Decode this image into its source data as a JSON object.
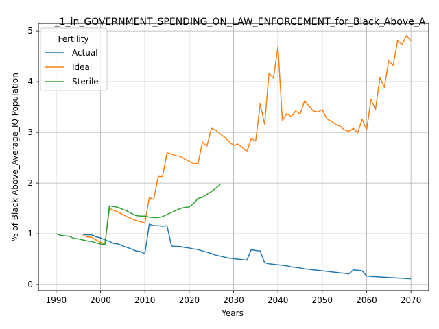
{
  "chart_data": {
    "type": "line",
    "title": "_1_in_GOVERNMENT_SPENDING_ON_LAW_ENFORCEMENT_for_Black_Above_A",
    "xlabel": "Years",
    "ylabel": "% of Black Above_Average_IQ Population",
    "xlim": [
      1986,
      2074
    ],
    "ylim": [
      -0.12,
      5.15
    ],
    "xticks": [
      1990,
      2000,
      2010,
      2020,
      2030,
      2040,
      2050,
      2060,
      2070
    ],
    "yticks": [
      0,
      1,
      2,
      3,
      4,
      5
    ],
    "grid": true,
    "legend": {
      "title": "Fertility",
      "placement": "upper-left"
    },
    "series": [
      {
        "name": "Actual",
        "color": "#1f77b4",
        "x": [
          1996,
          1997,
          1998,
          1999,
          2000,
          2001,
          2002,
          2003,
          2004,
          2005,
          2006,
          2007,
          2008,
          2009,
          2010,
          2011,
          2012,
          2013,
          2014,
          2015,
          2016,
          2017,
          2018,
          2019,
          2020,
          2021,
          2022,
          2023,
          2024,
          2025,
          2026,
          2027,
          2028,
          2029,
          2030,
          2031,
          2032,
          2033,
          2034,
          2035,
          2036,
          2037,
          2038,
          2039,
          2040,
          2041,
          2042,
          2043,
          2044,
          2045,
          2046,
          2047,
          2048,
          2049,
          2050,
          2051,
          2052,
          2053,
          2054,
          2055,
          2056,
          2057,
          2058,
          2059,
          2060,
          2061,
          2062,
          2063,
          2064,
          2065,
          2066,
          2067,
          2068,
          2069,
          2070
        ],
        "values": [
          0.99,
          0.98,
          0.98,
          0.94,
          0.92,
          0.88,
          0.85,
          0.81,
          0.8,
          0.76,
          0.73,
          0.7,
          0.66,
          0.65,
          0.61,
          1.19,
          1.16,
          1.16,
          1.15,
          1.16,
          0.76,
          0.75,
          0.75,
          0.73,
          0.72,
          0.7,
          0.69,
          0.66,
          0.64,
          0.61,
          0.58,
          0.56,
          0.54,
          0.52,
          0.51,
          0.5,
          0.49,
          0.48,
          0.69,
          0.67,
          0.66,
          0.43,
          0.41,
          0.4,
          0.39,
          0.38,
          0.37,
          0.35,
          0.34,
          0.33,
          0.31,
          0.3,
          0.29,
          0.28,
          0.27,
          0.26,
          0.25,
          0.24,
          0.23,
          0.22,
          0.21,
          0.29,
          0.28,
          0.27,
          0.17,
          0.16,
          0.155,
          0.15,
          0.145,
          0.14,
          0.135,
          0.13,
          0.125,
          0.12,
          0.115
        ]
      },
      {
        "name": "Ideal",
        "color": "#ff7f0e",
        "x": [
          1996,
          1997,
          1998,
          1999,
          2000,
          2001,
          2002,
          2003,
          2004,
          2005,
          2006,
          2007,
          2008,
          2009,
          2010,
          2011,
          2012,
          2013,
          2014,
          2015,
          2016,
          2017,
          2018,
          2019,
          2020,
          2021,
          2022,
          2023,
          2024,
          2025,
          2026,
          2027,
          2028,
          2029,
          2030,
          2031,
          2032,
          2033,
          2034,
          2035,
          2036,
          2037,
          2038,
          2039,
          2040,
          2041,
          2042,
          2043,
          2044,
          2045,
          2046,
          2047,
          2048,
          2049,
          2050,
          2051,
          2052,
          2053,
          2054,
          2055,
          2056,
          2057,
          2058,
          2059,
          2060,
          2061,
          2062,
          2063,
          2064,
          2065,
          2066,
          2067,
          2068,
          2069,
          2070
        ],
        "values": [
          0.97,
          0.94,
          0.93,
          0.88,
          0.83,
          0.8,
          1.5,
          1.46,
          1.43,
          1.38,
          1.34,
          1.3,
          1.26,
          1.24,
          1.21,
          1.71,
          1.68,
          2.13,
          2.13,
          2.6,
          2.57,
          2.54,
          2.53,
          2.47,
          2.43,
          2.38,
          2.39,
          2.81,
          2.73,
          3.08,
          3.04,
          2.97,
          2.9,
          2.82,
          2.74,
          2.77,
          2.7,
          2.62,
          2.88,
          2.83,
          3.56,
          3.16,
          4.17,
          4.07,
          4.69,
          3.24,
          3.37,
          3.31,
          3.42,
          3.36,
          3.62,
          3.52,
          3.42,
          3.4,
          3.45,
          3.27,
          3.22,
          3.16,
          3.12,
          3.05,
          3.02,
          3.08,
          2.99,
          3.26,
          3.05,
          3.65,
          3.45,
          4.08,
          3.89,
          4.41,
          4.32,
          4.81,
          4.73,
          4.91,
          4.8
        ]
      },
      {
        "name": "Sterile",
        "color": "#2ca02c",
        "x": [
          1990,
          1991,
          1992,
          1993,
          1994,
          1995,
          1996,
          1997,
          1998,
          1999,
          2000,
          2001,
          2002,
          2003,
          2004,
          2005,
          2006,
          2007,
          2008,
          2009,
          2010,
          2011,
          2012,
          2013,
          2014,
          2015,
          2016,
          2017,
          2018,
          2019,
          2020,
          2021,
          2022,
          2023,
          2024,
          2025,
          2026,
          2027
        ],
        "values": [
          1.0,
          0.97,
          0.96,
          0.95,
          0.91,
          0.9,
          0.88,
          0.86,
          0.85,
          0.82,
          0.8,
          0.79,
          1.55,
          1.54,
          1.52,
          1.48,
          1.45,
          1.4,
          1.36,
          1.35,
          1.35,
          1.33,
          1.32,
          1.32,
          1.34,
          1.38,
          1.42,
          1.46,
          1.5,
          1.52,
          1.53,
          1.6,
          1.7,
          1.72,
          1.78,
          1.83,
          1.9,
          1.97
        ]
      }
    ]
  }
}
